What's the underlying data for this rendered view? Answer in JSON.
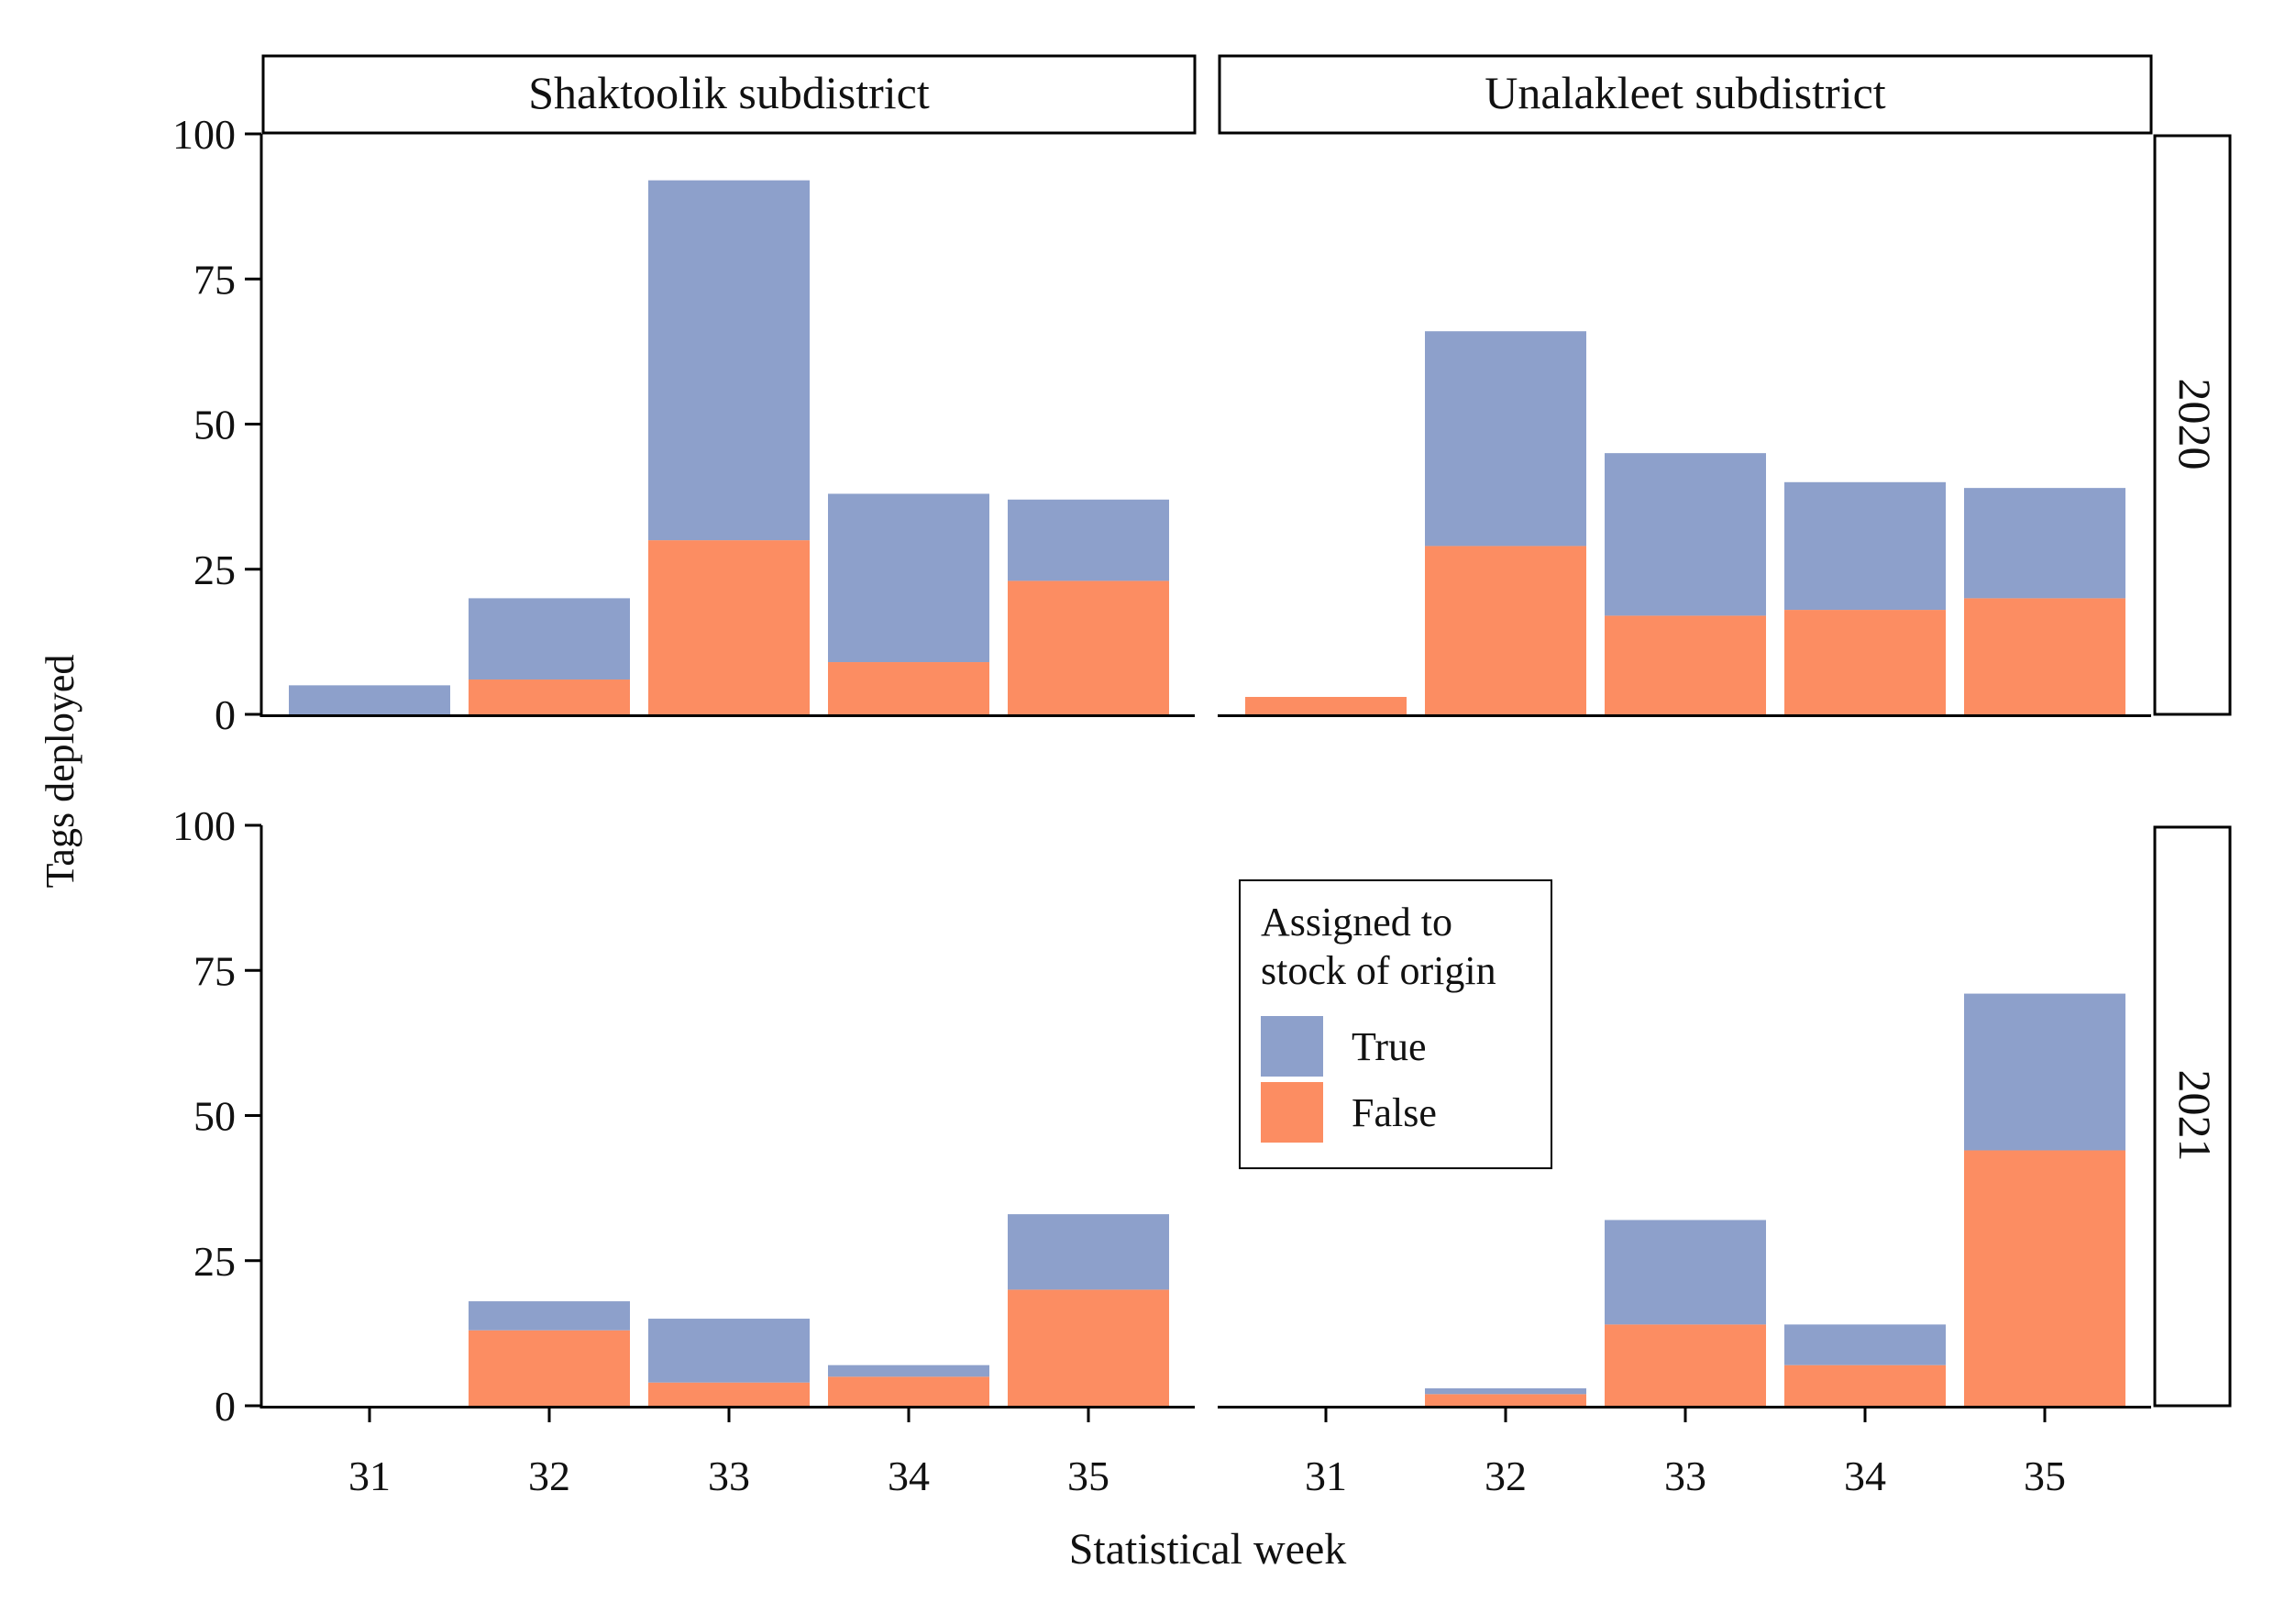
{
  "chart_data": {
    "type": "bar",
    "stacked": true,
    "facet_columns": [
      "Shaktoolik subdistrict",
      "Unalakleet subdistrict"
    ],
    "facet_rows": [
      "2020",
      "2021"
    ],
    "categories": [
      "31",
      "32",
      "33",
      "34",
      "35"
    ],
    "xlabel": "Statistical week",
    "ylabel": "Tags deployed",
    "ylim": [
      0,
      100
    ],
    "yticks": [
      "0",
      "25",
      "50",
      "75",
      "100"
    ],
    "legend": {
      "title_line1": "Assigned to",
      "title_line2": "stock of origin",
      "position": "inside bottom-right panel, upper-left"
    },
    "series": [
      {
        "name": "True",
        "color": "#8da0cb"
      },
      {
        "name": "False",
        "color": "#fc8d62"
      }
    ],
    "panels": [
      {
        "row": "2020",
        "column": "Shaktoolik subdistrict",
        "True": [
          5,
          14,
          62,
          29,
          14
        ],
        "False": [
          0,
          6,
          30,
          9,
          23
        ]
      },
      {
        "row": "2020",
        "column": "Unalakleet subdistrict",
        "True": [
          0,
          37,
          28,
          22,
          19
        ],
        "False": [
          3,
          29,
          17,
          18,
          20
        ]
      },
      {
        "row": "2021",
        "column": "Shaktoolik subdistrict",
        "True": [
          0,
          5,
          11,
          2,
          13
        ],
        "False": [
          0,
          13,
          4,
          5,
          20
        ]
      },
      {
        "row": "2021",
        "column": "Unalakleet subdistrict",
        "True": [
          0,
          1,
          18,
          7,
          27
        ],
        "False": [
          0,
          2,
          14,
          7,
          44
        ]
      }
    ]
  }
}
